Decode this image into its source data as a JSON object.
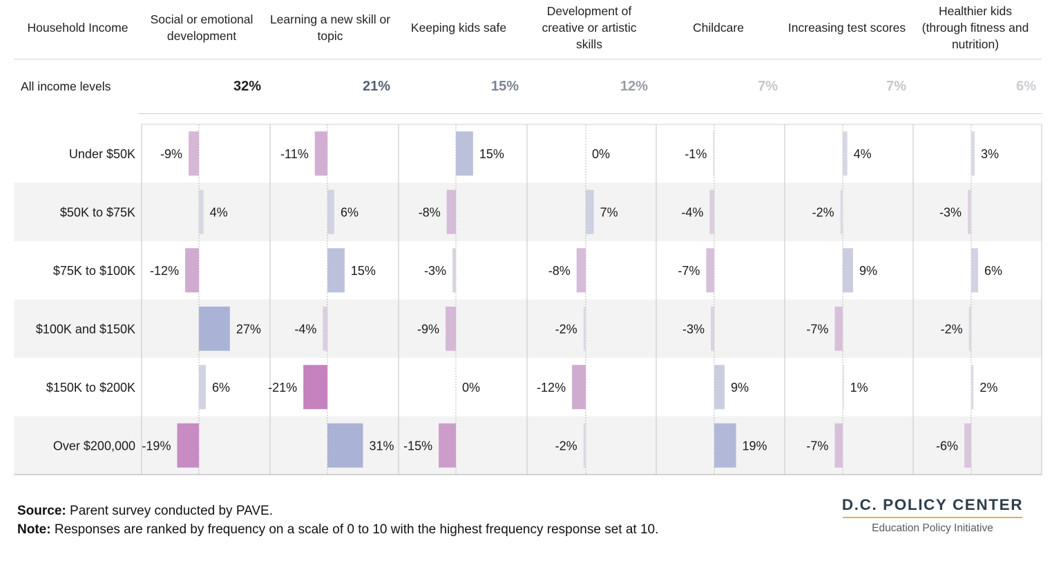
{
  "header": {
    "row_label_header": "Household Income",
    "columns": [
      "Social or emotional development",
      "Learning a new skill or topic",
      "Keeping kids safe",
      "Development of creative or artistic skills",
      "Childcare",
      "Increasing test scores",
      "Healthier kids (through fitness and nutrition)"
    ]
  },
  "all_levels": {
    "label": "All income levels",
    "values": [
      "32%",
      "21%",
      "15%",
      "12%",
      "7%",
      "7%",
      "6%"
    ],
    "colors": [
      "#1f1f1f",
      "#566071",
      "#7a8390",
      "#959ca6",
      "#c2c6cc",
      "#c2c6cc",
      "#c9cdd2"
    ]
  },
  "chart_data": {
    "type": "bar",
    "categories": [
      "Under $50K",
      "$50K to $75K",
      "$75K to $100K",
      "$100K and $150K",
      "$150K to $200K",
      "Over $200,000"
    ],
    "series": [
      {
        "name": "Social or emotional development",
        "values": [
          -9,
          4,
          -12,
          27,
          6,
          -19
        ]
      },
      {
        "name": "Learning a new skill or topic",
        "values": [
          -11,
          6,
          15,
          -4,
          -21,
          31
        ]
      },
      {
        "name": "Keeping kids safe",
        "values": [
          15,
          -8,
          -3,
          -9,
          0,
          -15
        ]
      },
      {
        "name": "Development of creative or artistic skills",
        "values": [
          0,
          7,
          -8,
          -2,
          -12,
          -2
        ]
      },
      {
        "name": "Childcare",
        "values": [
          -1,
          -4,
          -7,
          -3,
          9,
          19
        ]
      },
      {
        "name": "Increasing test scores",
        "values": [
          4,
          -2,
          9,
          -7,
          1,
          -7
        ]
      },
      {
        "name": "Healthier kids (through fitness and nutrition)",
        "values": [
          3,
          -3,
          6,
          -2,
          2,
          -6
        ]
      }
    ],
    "value_suffix": "%",
    "xlim": [
      -20,
      32
    ],
    "positive_color": "#aab2d6",
    "negative_color": "#c47ebd",
    "neutral_color": "#dfe0e6",
    "row_shading": "#f3f3f3"
  },
  "footer": {
    "source_label": "Source:",
    "source_text": " Parent survey conducted by PAVE.",
    "note_label": "Note:",
    "note_text": " Responses are ranked by frequency on a scale of 0 to 10 with the highest frequency response set at 10."
  },
  "brand": {
    "name": "D.C. POLICY CENTER",
    "subtitle": "Education Policy Initiative"
  }
}
